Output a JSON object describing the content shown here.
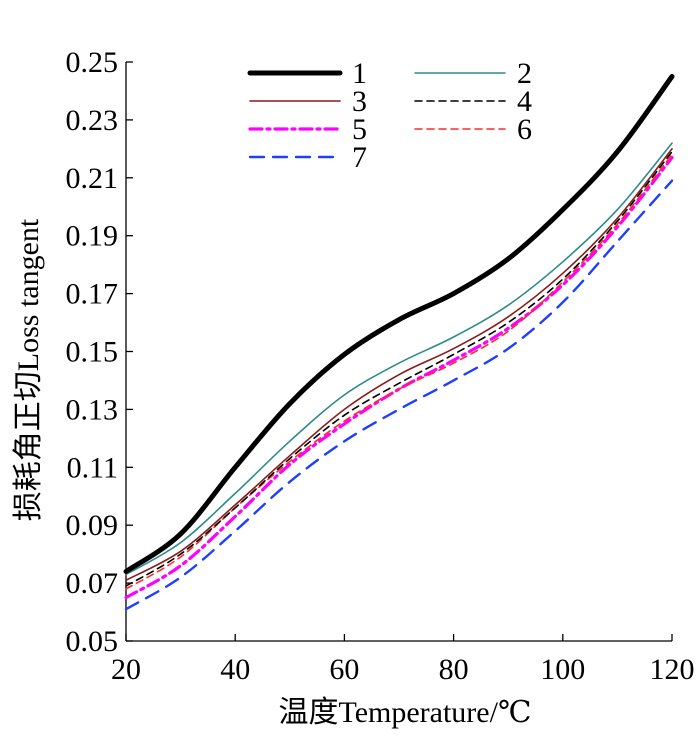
{
  "chart_data": {
    "type": "line",
    "title": "",
    "xlabel": "温度Temperature/℃",
    "ylabel": "损耗角正切Loss tangent",
    "xlim": [
      20,
      120
    ],
    "ylim": [
      0.05,
      0.25
    ],
    "x_ticks": [
      20,
      40,
      60,
      80,
      100,
      120
    ],
    "x_tick_labels": [
      "20",
      "40",
      "60",
      "80",
      "100",
      "120"
    ],
    "y_ticks": [
      0.05,
      0.07,
      0.09,
      0.11,
      0.13,
      0.15,
      0.17,
      0.19,
      0.21,
      0.23,
      0.25
    ],
    "y_tick_labels": [
      "0.05",
      "0.07",
      "0.09",
      "0.11",
      "0.13",
      "0.15",
      "0.17",
      "0.19",
      "0.21",
      "0.23",
      "0.25"
    ],
    "grid": false,
    "legend_position": "top-center",
    "x": [
      20,
      30,
      40,
      50,
      60,
      70,
      80,
      90,
      100,
      110,
      120
    ],
    "series": [
      {
        "name": "1",
        "color": "#000000",
        "style": "solid-thick",
        "values": [
          0.074,
          0.087,
          0.11,
          0.132,
          0.149,
          0.161,
          0.17,
          0.182,
          0.199,
          0.219,
          0.245
        ]
      },
      {
        "name": "2",
        "color": "#2e8b8b",
        "style": "solid",
        "values": [
          0.073,
          0.084,
          0.101,
          0.119,
          0.135,
          0.146,
          0.155,
          0.166,
          0.181,
          0.199,
          0.222
        ]
      },
      {
        "name": "3",
        "color": "#8b1a1a",
        "style": "solid",
        "values": [
          0.071,
          0.081,
          0.097,
          0.114,
          0.13,
          0.142,
          0.151,
          0.162,
          0.177,
          0.196,
          0.22
        ]
      },
      {
        "name": "4",
        "color": "#000000",
        "style": "dashed",
        "values": [
          0.069,
          0.08,
          0.096,
          0.113,
          0.128,
          0.139,
          0.149,
          0.16,
          0.175,
          0.195,
          0.219
        ]
      },
      {
        "name": "5",
        "color": "#ff00ff",
        "style": "dashdot",
        "values": [
          0.065,
          0.076,
          0.093,
          0.111,
          0.125,
          0.137,
          0.147,
          0.158,
          0.173,
          0.193,
          0.217
        ]
      },
      {
        "name": "6",
        "color": "#ff2a2a",
        "style": "dashed",
        "values": [
          0.068,
          0.079,
          0.096,
          0.112,
          0.126,
          0.137,
          0.146,
          0.157,
          0.174,
          0.194,
          0.218
        ]
      },
      {
        "name": "7",
        "color": "#1f3fff",
        "style": "longdash",
        "values": [
          0.061,
          0.072,
          0.088,
          0.105,
          0.119,
          0.13,
          0.14,
          0.151,
          0.167,
          0.188,
          0.209
        ]
      }
    ]
  }
}
